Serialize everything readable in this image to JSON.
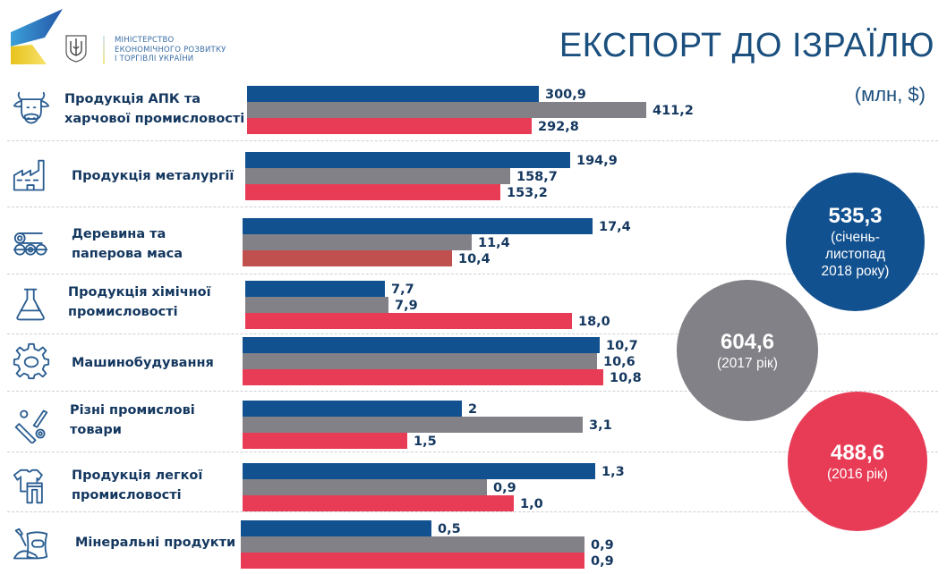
{
  "header": {
    "ministry_lines": [
      "МІНІСТЕРСТВО",
      "ЕКОНОМІЧНОГО РОЗВИТКУ",
      "І ТОРГІВЛІ УКРАЇНИ"
    ],
    "title": "ЕКСПОРТ ДО ІЗРАЇЛЮ",
    "units": "(млн, $)"
  },
  "colors": {
    "series_2018": "#12518f",
    "series_2017": "#818187",
    "series_2016": "#e83c56",
    "series_2016_alt": "#c0504d",
    "text": "#14375f",
    "icon": "#2a5d91"
  },
  "totals": [
    {
      "value": "535,3",
      "label_lines": [
        "(січень-",
        "листопад",
        "2018 року)"
      ],
      "color": "#12518f"
    },
    {
      "value": "604,6",
      "label_lines": [
        "(2017 рік)"
      ],
      "color": "#818187"
    },
    {
      "value": "488,6",
      "label_lines": [
        "(2016 рік)"
      ],
      "color": "#e83c56"
    }
  ],
  "chart_data": {
    "type": "bar",
    "orientation": "horizontal",
    "title": "ЕКСПОРТ ДО ІЗРАЇЛЮ",
    "ylabel": "(млн, $)",
    "series_names": [
      "січень-листопад 2018 року",
      "2017 рік",
      "2016 рік"
    ],
    "categories": [
      {
        "label_lines": [
          "Продукція АПК та",
          "харчової промисловості"
        ],
        "icon": "cow-icon"
      },
      {
        "label_lines": [
          "Продукція металургії"
        ],
        "icon": "factory-icon"
      },
      {
        "label_lines": [
          "Деревина та",
          "паперова маса"
        ],
        "icon": "logs-icon"
      },
      {
        "label_lines": [
          "Продукція хімічної",
          "промисловості"
        ],
        "icon": "flask-icon"
      },
      {
        "label_lines": [
          "Машинобудування"
        ],
        "icon": "gear-icon"
      },
      {
        "label_lines": [
          "Різні промислові",
          "товари"
        ],
        "icon": "bolts-icon"
      },
      {
        "label_lines": [
          "Продукція легкої",
          "промисловості"
        ],
        "icon": "clothes-icon"
      },
      {
        "label_lines": [
          "Мінеральні продукти"
        ],
        "icon": "sack-icon"
      }
    ],
    "series": [
      {
        "name": "2018 (січень-листопад)",
        "values": [
          300.9,
          194.9,
          17.4,
          7.7,
          10.7,
          2,
          1.3,
          0.5
        ],
        "labels": [
          "300,9",
          "194,9",
          "17,4",
          "7,7",
          "10,7",
          "2",
          "1,3",
          "0,5"
        ]
      },
      {
        "name": "2017",
        "values": [
          411.2,
          158.7,
          11.4,
          7.9,
          10.6,
          3.1,
          0.9,
          0.9
        ],
        "labels": [
          "411,2",
          "158,7",
          "11,4",
          "7,9",
          "10,6",
          "3,1",
          "0,9",
          "0,9"
        ]
      },
      {
        "name": "2016",
        "values": [
          292.8,
          153.2,
          10.4,
          18.0,
          10.8,
          1.5,
          1.0,
          0.9
        ],
        "labels": [
          "292,8",
          "153,2",
          "10,4",
          "18,0",
          "10,8",
          "1,5",
          "1,0",
          "0,9"
        ]
      }
    ]
  }
}
